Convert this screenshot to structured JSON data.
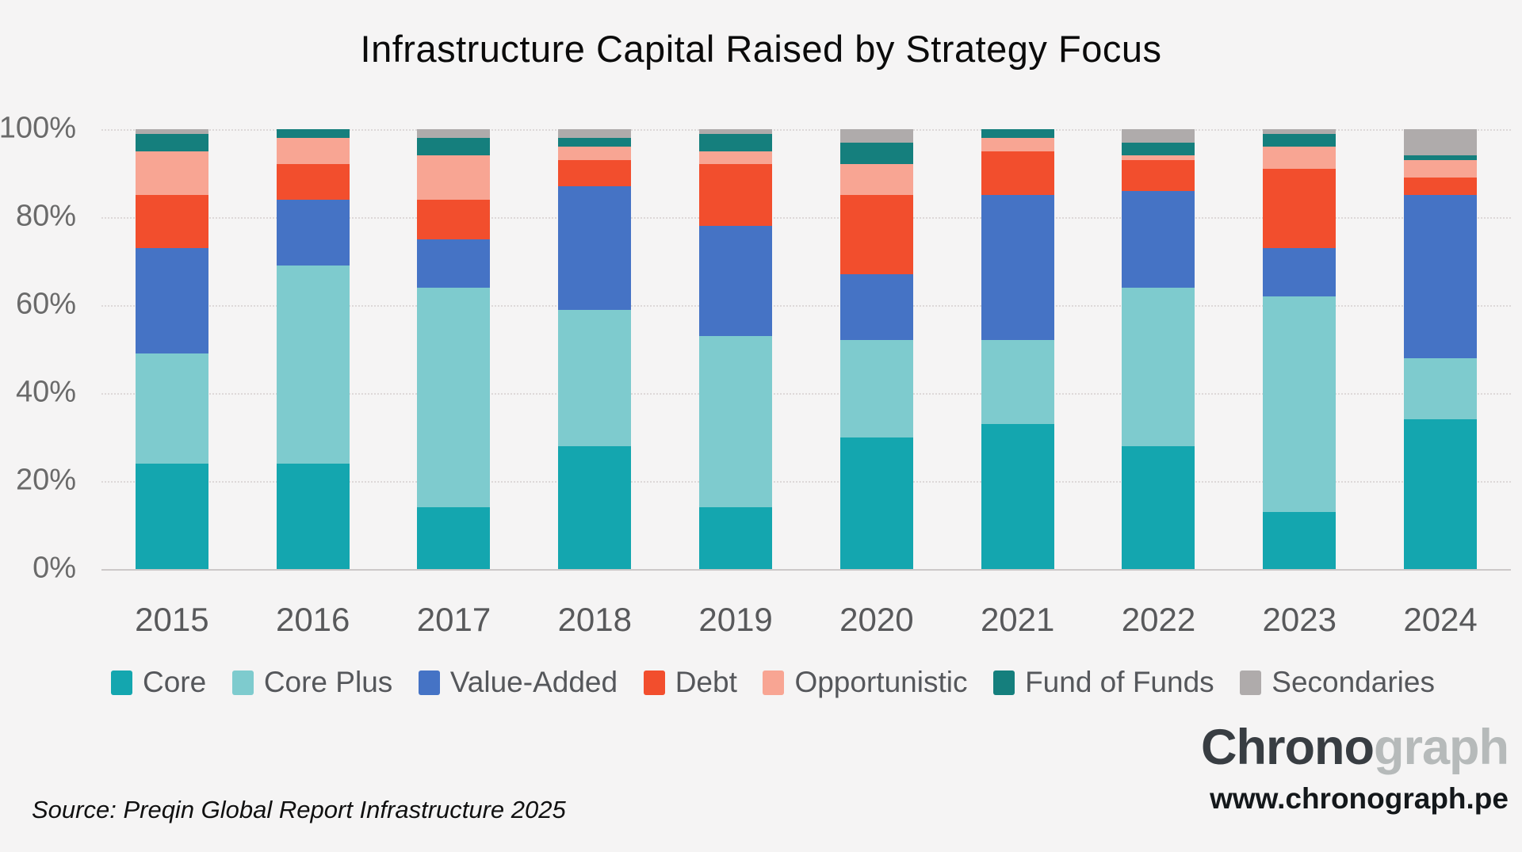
{
  "title": "Infrastructure Capital Raised by Strategy Focus",
  "y_axis": {
    "ticks": [
      {
        "label": "100%",
        "value": 100
      },
      {
        "label": "80%",
        "value": 80
      },
      {
        "label": "60%",
        "value": 60
      },
      {
        "label": "40%",
        "value": 40
      },
      {
        "label": "20%",
        "value": 20
      },
      {
        "label": "0%",
        "value": 0
      }
    ]
  },
  "chart_data": {
    "type": "bar",
    "stacked": true,
    "units": "percent of capital raised",
    "title": "Infrastructure Capital Raised by Strategy Focus",
    "xlabel": "",
    "ylabel": "",
    "ylim": [
      0,
      100
    ],
    "grid": "horizontal-dotted",
    "legend_position": "bottom",
    "categories": [
      "2015",
      "2016",
      "2017",
      "2018",
      "2019",
      "2020",
      "2021",
      "2022",
      "2023",
      "2024"
    ],
    "series": [
      {
        "name": "Core",
        "color": "#14A6AF",
        "values": [
          24,
          24,
          14,
          28,
          14,
          30,
          33,
          28,
          13,
          34
        ]
      },
      {
        "name": "Core Plus",
        "color": "#7ECBCE",
        "values": [
          25,
          45,
          50,
          31,
          39,
          22,
          19,
          36,
          49,
          14
        ]
      },
      {
        "name": "Value-Added",
        "color": "#4573C5",
        "values": [
          24,
          15,
          11,
          28,
          25,
          15,
          33,
          22,
          11,
          37
        ]
      },
      {
        "name": "Debt",
        "color": "#F24E2D",
        "values": [
          12,
          8,
          9,
          6,
          14,
          18,
          10,
          7,
          18,
          4
        ]
      },
      {
        "name": "Opportunistic",
        "color": "#F8A593",
        "values": [
          10,
          6,
          10,
          3,
          3,
          7,
          3,
          1,
          5,
          4
        ]
      },
      {
        "name": "Fund of Funds",
        "color": "#157F7D",
        "values": [
          4,
          2,
          4,
          2,
          4,
          5,
          2,
          3,
          3,
          1
        ]
      },
      {
        "name": "Secondaries",
        "color": "#AFABAB",
        "values": [
          1,
          0,
          2,
          2,
          1,
          3,
          0,
          3,
          1,
          6
        ]
      }
    ]
  },
  "footer": {
    "source": "Source: Preqin Global Report Infrastructure 2025"
  },
  "branding": {
    "logo_primary": "Chrono",
    "logo_secondary": "graph",
    "website": "www.chronograph.pe"
  },
  "colors": {
    "background": "#F5F4F4",
    "title_text": "#0B0B0B",
    "axis_text": "#6A6A6A",
    "category_text": "#58595B",
    "legend_text": "#55575B",
    "gridline": "#DDD8D8",
    "axis_line": "#CCC8C8",
    "logo_primary": "#383D42",
    "logo_secondary": "#B6BABA"
  }
}
